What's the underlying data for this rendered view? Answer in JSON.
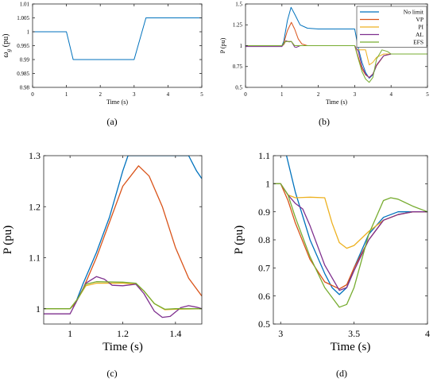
{
  "figure": {
    "captions": [
      "(a)",
      "(b)",
      "(c)",
      "(d)"
    ]
  },
  "chart_data": [
    {
      "id": "a",
      "type": "line",
      "title": "",
      "xlabel": "Time (s)",
      "ylabel_main": "ω",
      "ylabel_sub": "g",
      "ylabel_unit": "(pu)",
      "xlim": [
        0,
        5
      ],
      "ylim": [
        0.98,
        1.01
      ],
      "xticks": [
        0,
        1,
        2,
        3,
        4,
        5
      ],
      "xtick_labels": [
        "0",
        "1",
        "2",
        "3",
        "4",
        "5"
      ],
      "yticks": [
        0.98,
        0.985,
        0.99,
        0.995,
        1,
        1.005,
        1.01
      ],
      "ytick_labels": [
        "0.98",
        "0.985",
        "0.99",
        "0.995",
        "1",
        "1.005",
        "1.01"
      ],
      "grid": false,
      "series": [
        {
          "color": "#0072BD",
          "x": [
            0,
            1,
            1.2,
            3,
            3.35,
            5
          ],
          "y": [
            1,
            1,
            0.99,
            0.99,
            1.005,
            1.005
          ]
        }
      ]
    },
    {
      "id": "b",
      "type": "line",
      "title": "",
      "xlabel": "Time (s)",
      "ylabel": "P (pu)",
      "xlim": [
        0,
        5
      ],
      "ylim": [
        0.5,
        1.5
      ],
      "xticks": [
        0,
        1,
        2,
        3,
        4,
        5
      ],
      "xtick_labels": [
        "0",
        "1",
        "2",
        "3",
        "4",
        "5"
      ],
      "yticks": [
        0.5,
        0.75,
        1,
        1.25,
        1.5
      ],
      "ytick_labels": [
        "0.5",
        "0.75",
        "1",
        "1.25",
        "1.5"
      ],
      "legend_position": "top-right",
      "grid": false,
      "series": [
        {
          "name": "No limit",
          "color": "#0072BD",
          "x": [
            0,
            1,
            1.05,
            1.15,
            1.25,
            1.35,
            1.5,
            1.7,
            2,
            3,
            3.1,
            3.2,
            3.3,
            3.4,
            3.5,
            3.6,
            3.8,
            4,
            5
          ],
          "y": [
            1,
            1,
            1.05,
            1.3,
            1.46,
            1.38,
            1.25,
            1.21,
            1.2,
            1.2,
            0.97,
            0.8,
            0.68,
            0.61,
            0.65,
            0.76,
            0.88,
            0.9,
            0.9
          ]
        },
        {
          "name": "VP",
          "color": "#D95319",
          "x": [
            0,
            1,
            1.05,
            1.15,
            1.26,
            1.35,
            1.45,
            1.55,
            1.7,
            2,
            3,
            3.1,
            3.2,
            3.3,
            3.4,
            3.5,
            3.6,
            3.8,
            4,
            5
          ],
          "y": [
            1,
            1,
            1.03,
            1.18,
            1.28,
            1.2,
            1.08,
            1.02,
            1,
            1,
            1,
            0.86,
            0.72,
            0.65,
            0.62,
            0.66,
            0.76,
            0.88,
            0.9,
            0.9
          ]
        },
        {
          "name": "PI",
          "color": "#EDB120",
          "x": [
            0,
            1,
            1.05,
            1.1,
            1.2,
            1.26,
            1.35,
            1.5,
            2,
            3,
            3.05,
            3.1,
            3.3,
            3.4,
            3.5,
            3.6,
            3.8,
            4,
            5
          ],
          "y": [
            1,
            1,
            1.01,
            1.05,
            1.05,
            1.05,
            1,
            1,
            1,
            1,
            0.96,
            0.95,
            0.95,
            0.77,
            0.8,
            0.86,
            0.9,
            0.9,
            0.9
          ]
        },
        {
          "name": "AL",
          "color": "#7E2F8E",
          "x": [
            0,
            1,
            1.05,
            1.11,
            1.2,
            1.26,
            1.35,
            1.4,
            1.5,
            2,
            3,
            3.1,
            3.2,
            3.3,
            3.4,
            3.5,
            3.6,
            3.8,
            4,
            5
          ],
          "y": [
            0.99,
            0.99,
            1.02,
            1.06,
            1.045,
            1.05,
            0.985,
            0.98,
            1,
            1,
            1,
            0.93,
            0.75,
            0.66,
            0.615,
            0.66,
            0.77,
            0.88,
            0.9,
            0.9
          ]
        },
        {
          "name": "EFS",
          "color": "#77AC30",
          "x": [
            0,
            1,
            1.05,
            1.1,
            1.2,
            1.26,
            1.35,
            1.5,
            2,
            3,
            3.1,
            3.2,
            3.3,
            3.4,
            3.5,
            3.6,
            3.75,
            3.9,
            4,
            5
          ],
          "y": [
            1,
            1,
            1.03,
            1.05,
            1.05,
            1.05,
            1,
            1,
            1,
            1,
            0.84,
            0.69,
            0.6,
            0.56,
            0.62,
            0.84,
            0.95,
            0.93,
            0.9,
            0.9
          ]
        }
      ]
    },
    {
      "id": "c",
      "type": "line",
      "title": "",
      "xlabel": "Time (s)",
      "ylabel": "P (pu)",
      "xlim": [
        0.9,
        1.5
      ],
      "ylim": [
        0.97,
        1.3
      ],
      "xticks": [
        1,
        1.2,
        1.4
      ],
      "xtick_labels": [
        "1",
        "1.2",
        "1.4"
      ],
      "yticks": [
        1,
        1.1,
        1.2,
        1.3
      ],
      "ytick_labels": [
        "1",
        "1.1",
        "1.2",
        "1.3"
      ],
      "grid": false,
      "series": [
        {
          "color": "#0072BD",
          "x": [
            0.9,
            1,
            1.02,
            1.05,
            1.1,
            1.15,
            1.2,
            1.22,
            1.45,
            1.48,
            1.5
          ],
          "y": [
            1,
            1,
            1.01,
            1.05,
            1.11,
            1.18,
            1.27,
            1.3,
            1.3,
            1.27,
            1.255
          ]
        },
        {
          "color": "#D95319",
          "x": [
            0.9,
            1,
            1.02,
            1.05,
            1.1,
            1.15,
            1.2,
            1.26,
            1.3,
            1.35,
            1.4,
            1.45,
            1.5
          ],
          "y": [
            1,
            1,
            1.01,
            1.04,
            1.1,
            1.17,
            1.24,
            1.28,
            1.26,
            1.2,
            1.12,
            1.06,
            1.025
          ]
        },
        {
          "color": "#EDB120",
          "x": [
            0.9,
            1,
            1.03,
            1.06,
            1.1,
            1.2,
            1.25,
            1.28,
            1.32,
            1.36,
            1.4,
            1.5
          ],
          "y": [
            1,
            1,
            1.02,
            1.045,
            1.05,
            1.05,
            1.048,
            1.035,
            1.01,
            0.998,
            0.999,
            1
          ]
        },
        {
          "color": "#7E2F8E",
          "x": [
            0.9,
            1,
            1.03,
            1.06,
            1.1,
            1.13,
            1.16,
            1.2,
            1.25,
            1.28,
            1.32,
            1.35,
            1.38,
            1.42,
            1.45,
            1.48,
            1.5
          ],
          "y": [
            0.99,
            0.99,
            1.02,
            1.05,
            1.063,
            1.058,
            1.046,
            1.045,
            1.048,
            1.03,
            0.995,
            0.983,
            0.985,
            1.002,
            1.006,
            1.003,
            1
          ]
        },
        {
          "color": "#77AC30",
          "x": [
            0.9,
            1,
            1.03,
            1.06,
            1.1,
            1.2,
            1.25,
            1.28,
            1.32,
            1.36,
            1.4,
            1.5
          ],
          "y": [
            1,
            1,
            1.02,
            1.048,
            1.053,
            1.052,
            1.05,
            1.035,
            1.01,
            0.999,
            1,
            1
          ]
        }
      ]
    },
    {
      "id": "d",
      "type": "line",
      "title": "",
      "xlabel": "Time (s)",
      "ylabel": "P (pu)",
      "xlim": [
        2.95,
        4
      ],
      "ylim": [
        0.5,
        1.1
      ],
      "xticks": [
        3,
        3.5,
        4
      ],
      "xtick_labels": [
        "3",
        "3.5",
        "4"
      ],
      "yticks": [
        0.5,
        0.6,
        0.7,
        0.8,
        0.9,
        1,
        1.1
      ],
      "ytick_labels": [
        "0.5",
        "0.6",
        "0.7",
        "0.8",
        "0.9",
        "1",
        "1.1"
      ],
      "grid": false,
      "series": [
        {
          "color": "#0072BD",
          "x": [
            3.04,
            3.1,
            3.2,
            3.3,
            3.35,
            3.4,
            3.45,
            3.5,
            3.6,
            3.7,
            3.8,
            3.9,
            4
          ],
          "y": [
            1.1,
            0.97,
            0.8,
            0.68,
            0.63,
            0.605,
            0.63,
            0.7,
            0.82,
            0.88,
            0.9,
            0.9,
            0.9
          ]
        },
        {
          "color": "#D95319",
          "x": [
            2.95,
            3,
            3.05,
            3.1,
            3.2,
            3.3,
            3.4,
            3.45,
            3.5,
            3.6,
            3.7,
            3.8,
            3.9,
            4
          ],
          "y": [
            1,
            1,
            0.94,
            0.86,
            0.73,
            0.65,
            0.625,
            0.64,
            0.7,
            0.8,
            0.87,
            0.89,
            0.9,
            0.9
          ]
        },
        {
          "color": "#EDB120",
          "x": [
            2.95,
            3,
            3.05,
            3.1,
            3.2,
            3.3,
            3.35,
            3.4,
            3.45,
            3.5,
            3.6,
            3.7,
            3.8,
            3.9,
            4
          ],
          "y": [
            1,
            1,
            0.96,
            0.95,
            0.952,
            0.95,
            0.86,
            0.79,
            0.77,
            0.78,
            0.83,
            0.87,
            0.89,
            0.9,
            0.9
          ]
        },
        {
          "color": "#7E2F8E",
          "x": [
            2.95,
            3,
            3.05,
            3.1,
            3.15,
            3.2,
            3.3,
            3.4,
            3.45,
            3.5,
            3.6,
            3.7,
            3.8,
            3.9,
            4
          ],
          "y": [
            1,
            1,
            0.96,
            0.93,
            0.91,
            0.85,
            0.71,
            0.62,
            0.63,
            0.69,
            0.8,
            0.87,
            0.89,
            0.9,
            0.9
          ]
        },
        {
          "color": "#77AC30",
          "x": [
            2.95,
            3,
            3.05,
            3.1,
            3.2,
            3.3,
            3.4,
            3.45,
            3.5,
            3.6,
            3.7,
            3.75,
            3.8,
            3.9,
            4
          ],
          "y": [
            1,
            1,
            0.96,
            0.88,
            0.74,
            0.63,
            0.56,
            0.57,
            0.63,
            0.82,
            0.94,
            0.95,
            0.945,
            0.92,
            0.9
          ]
        }
      ]
    }
  ]
}
